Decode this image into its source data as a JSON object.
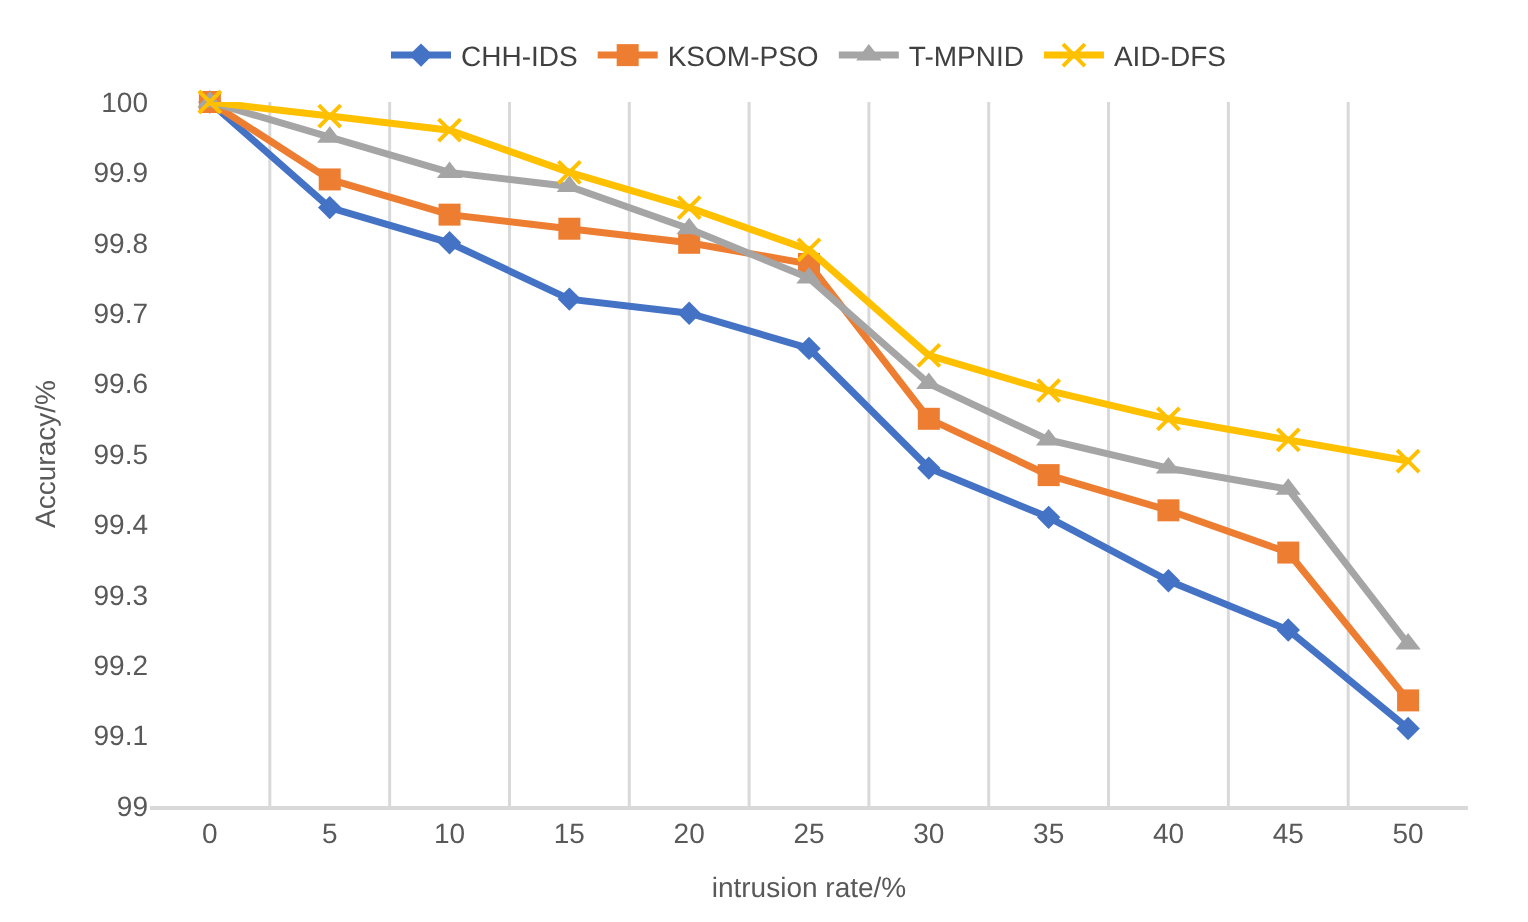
{
  "chart_data": {
    "type": "line",
    "xlabel": "intrusion rate/%",
    "ylabel": "Accuracy/%",
    "categories": [
      "0",
      "5",
      "10",
      "15",
      "20",
      "25",
      "30",
      "35",
      "40",
      "45",
      "50"
    ],
    "series": [
      {
        "name": "CHH-IDS",
        "color": "#4472c4",
        "marker": "diamond",
        "values": [
          100,
          99.85,
          99.8,
          99.72,
          99.7,
          99.65,
          99.48,
          99.41,
          99.32,
          99.25,
          99.11
        ]
      },
      {
        "name": "KSOM-PSO",
        "color": "#ed7d31",
        "marker": "square",
        "values": [
          100,
          99.89,
          99.84,
          99.82,
          99.8,
          99.77,
          99.55,
          99.47,
          99.42,
          99.36,
          99.15
        ]
      },
      {
        "name": "T-MPNID",
        "color": "#a5a5a5",
        "marker": "triangle",
        "values": [
          100,
          99.95,
          99.9,
          99.88,
          99.82,
          99.75,
          99.6,
          99.52,
          99.48,
          99.45,
          99.23
        ]
      },
      {
        "name": "AID-DFS",
        "color": "#ffc000",
        "marker": "cross",
        "values": [
          100,
          99.98,
          99.96,
          99.9,
          99.85,
          99.79,
          99.64,
          99.59,
          99.55,
          99.52,
          99.49
        ]
      }
    ],
    "ylim": [
      99,
      100
    ],
    "yticks": [
      99,
      99.1,
      99.2,
      99.3,
      99.4,
      99.5,
      99.6,
      99.7,
      99.8,
      99.9,
      100
    ],
    "grid": "x",
    "legend": "top",
    "line_style": "solid"
  }
}
